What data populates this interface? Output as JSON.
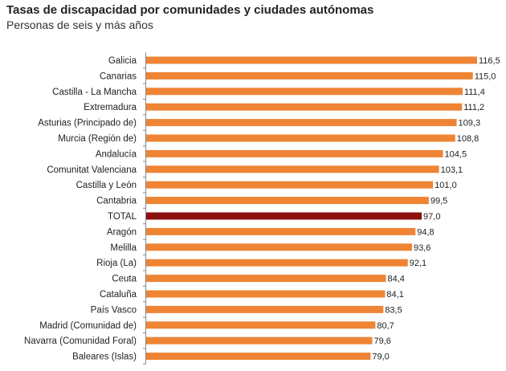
{
  "colors": {
    "bar": "#EE8434",
    "highlight": "#8B1010",
    "axis": "#888888"
  },
  "chart_data": {
    "type": "bar",
    "orientation": "horizontal",
    "title": "Tasas de discapacidad por comunidades y ciudades autónomas",
    "subtitle": "Personas de seis y más años",
    "xlim": [
      0,
      120
    ],
    "grid": false,
    "legend": "none",
    "highlight_category": "TOTAL",
    "categories": [
      "Galicia",
      "Canarias",
      "Castilla - La Mancha",
      "Extremadura",
      "Asturias (Principado de)",
      "Murcia (Región de)",
      "Andalucía",
      "Comunitat Valenciana",
      "Castilla y León",
      "Cantabria",
      "TOTAL",
      "Aragón",
      "Melilla",
      "Rioja (La)",
      "Ceuta",
      "Cataluña",
      "País Vasco",
      "Madrid (Comunidad de)",
      "Navarra (Comunidad Foral)",
      "Baleares (Islas)"
    ],
    "values": [
      116.5,
      115.0,
      111.4,
      111.2,
      109.3,
      108.8,
      104.5,
      103.1,
      101.0,
      99.5,
      97.0,
      94.8,
      93.6,
      92.1,
      84.4,
      84.1,
      83.5,
      80.7,
      79.6,
      79.0
    ],
    "value_labels": [
      "116,5",
      "115,0",
      "111,4",
      "111,2",
      "109,3",
      "108,8",
      "104,5",
      "103,1",
      "101,0",
      "99,5",
      "97,0",
      "94,8",
      "93,6",
      "92,1",
      "84,4",
      "84,1",
      "83,5",
      "80,7",
      "79,6",
      "79,0"
    ]
  }
}
